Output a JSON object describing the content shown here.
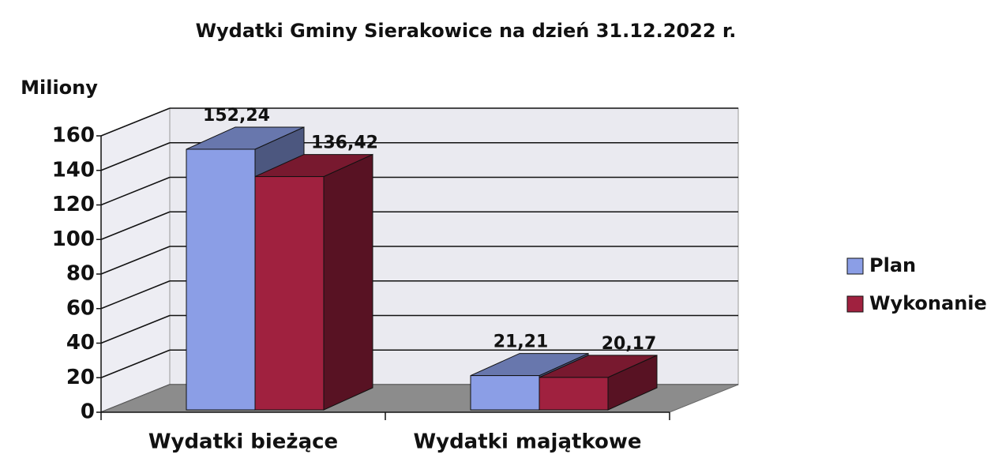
{
  "chart_data": {
    "type": "bar3d",
    "title": "Wydatki Gminy Sierakowice na dzień 31.12.2022 r.",
    "y_label": "Miliony",
    "categories": [
      "Wydatki bieżące",
      "Wydatki majątkowe"
    ],
    "series": [
      {
        "name": "Plan",
        "color": "#8b9ee6",
        "values": [
          152.24,
          21.21
        ],
        "value_labels": [
          "152,24",
          "21,21"
        ]
      },
      {
        "name": "Wykonanie",
        "color": "#a0213f",
        "values": [
          136.42,
          20.17
        ],
        "value_labels": [
          "136,42",
          "20,17"
        ]
      }
    ],
    "ylim": [
      0,
      160
    ],
    "yticks": [
      0,
      20,
      40,
      60,
      80,
      100,
      120,
      140,
      160
    ],
    "grid": true,
    "legend": "right"
  }
}
